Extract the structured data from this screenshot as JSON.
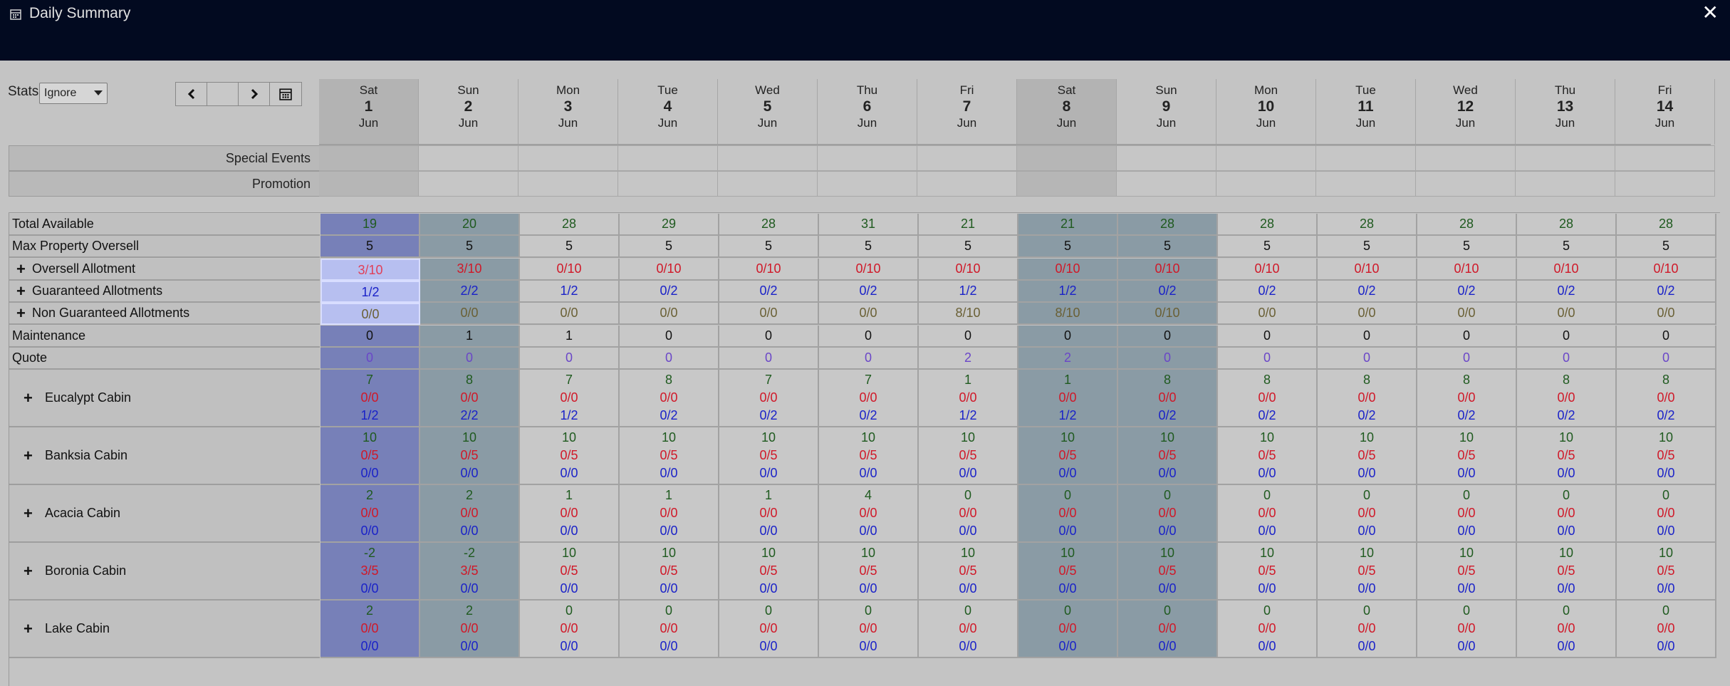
{
  "titlebar": {
    "title": "Daily Summary",
    "close_label": "✕",
    "icon": "calendar-icon"
  },
  "toolbar": {
    "stats_label": "Stats",
    "stats_value": "Ignore",
    "nav": {
      "prev_icon": "chevron-left-icon",
      "next_icon": "chevron-right-icon",
      "calendar_icon": "calendar-icon"
    }
  },
  "days": [
    {
      "dow": "Sat",
      "day": "1",
      "month": "Jun"
    },
    {
      "dow": "Sun",
      "day": "2",
      "month": "Jun"
    },
    {
      "dow": "Mon",
      "day": "3",
      "month": "Jun"
    },
    {
      "dow": "Tue",
      "day": "4",
      "month": "Jun"
    },
    {
      "dow": "Wed",
      "day": "5",
      "month": "Jun"
    },
    {
      "dow": "Thu",
      "day": "6",
      "month": "Jun"
    },
    {
      "dow": "Fri",
      "day": "7",
      "month": "Jun"
    },
    {
      "dow": "Sat",
      "day": "8",
      "month": "Jun"
    },
    {
      "dow": "Sun",
      "day": "9",
      "month": "Jun"
    },
    {
      "dow": "Mon",
      "day": "10",
      "month": "Jun"
    },
    {
      "dow": "Tue",
      "day": "11",
      "month": "Jun"
    },
    {
      "dow": "Wed",
      "day": "12",
      "month": "Jun"
    },
    {
      "dow": "Thu",
      "day": "13",
      "month": "Jun"
    },
    {
      "dow": "Fri",
      "day": "14",
      "month": "Jun"
    }
  ],
  "events": {
    "special_events_label": "Special Events",
    "promotion_label": "Promotion"
  },
  "summary_rows": [
    {
      "label": "Total Available",
      "expandable": false,
      "color": "green",
      "values": [
        "19",
        "20",
        "28",
        "29",
        "28",
        "31",
        "21",
        "21",
        "28",
        "28",
        "28",
        "28",
        "28",
        "28"
      ]
    },
    {
      "label": "Max Property Oversell",
      "expandable": false,
      "color": "black",
      "values": [
        "5",
        "5",
        "5",
        "5",
        "5",
        "5",
        "5",
        "5",
        "5",
        "5",
        "5",
        "5",
        "5",
        "5"
      ]
    },
    {
      "label": "Oversell Allotment",
      "expandable": true,
      "color": "red",
      "values": [
        "3/10",
        "3/10",
        "0/10",
        "0/10",
        "0/10",
        "0/10",
        "0/10",
        "0/10",
        "0/10",
        "0/10",
        "0/10",
        "0/10",
        "0/10",
        "0/10"
      ]
    },
    {
      "label": "Guaranteed Allotments",
      "expandable": true,
      "color": "blue",
      "values": [
        "1/2",
        "2/2",
        "1/2",
        "0/2",
        "0/2",
        "0/2",
        "1/2",
        "1/2",
        "0/2",
        "0/2",
        "0/2",
        "0/2",
        "0/2",
        "0/2"
      ]
    },
    {
      "label": "Non Guaranteed Allotments",
      "expandable": true,
      "color": "olive",
      "values": [
        "0/0",
        "0/0",
        "0/0",
        "0/0",
        "0/0",
        "0/0",
        "8/10",
        "8/10",
        "0/10",
        "0/0",
        "0/0",
        "0/0",
        "0/0",
        "0/0"
      ]
    },
    {
      "label": "Maintenance",
      "expandable": false,
      "color": "black",
      "values": [
        "0",
        "1",
        "1",
        "0",
        "0",
        "0",
        "0",
        "0",
        "0",
        "0",
        "0",
        "0",
        "0",
        "0"
      ]
    },
    {
      "label": "Quote",
      "expandable": false,
      "color": "purple",
      "values": [
        "0",
        "0",
        "0",
        "0",
        "0",
        "0",
        "2",
        "2",
        "0",
        "0",
        "0",
        "0",
        "0",
        "0"
      ]
    }
  ],
  "rooms": [
    {
      "label": "Eucalypt Cabin",
      "available": [
        "7",
        "8",
        "7",
        "8",
        "7",
        "7",
        "1",
        "1",
        "8",
        "8",
        "8",
        "8",
        "8",
        "8"
      ],
      "oversell": [
        "0/0",
        "0/0",
        "0/0",
        "0/0",
        "0/0",
        "0/0",
        "0/0",
        "0/0",
        "0/0",
        "0/0",
        "0/0",
        "0/0",
        "0/0",
        "0/0"
      ],
      "allotments": [
        "1/2",
        "2/2",
        "1/2",
        "0/2",
        "0/2",
        "0/2",
        "1/2",
        "1/2",
        "0/2",
        "0/2",
        "0/2",
        "0/2",
        "0/2",
        "0/2"
      ]
    },
    {
      "label": "Banksia Cabin",
      "available": [
        "10",
        "10",
        "10",
        "10",
        "10",
        "10",
        "10",
        "10",
        "10",
        "10",
        "10",
        "10",
        "10",
        "10"
      ],
      "oversell": [
        "0/5",
        "0/5",
        "0/5",
        "0/5",
        "0/5",
        "0/5",
        "0/5",
        "0/5",
        "0/5",
        "0/5",
        "0/5",
        "0/5",
        "0/5",
        "0/5"
      ],
      "allotments": [
        "0/0",
        "0/0",
        "0/0",
        "0/0",
        "0/0",
        "0/0",
        "0/0",
        "0/0",
        "0/0",
        "0/0",
        "0/0",
        "0/0",
        "0/0",
        "0/0"
      ]
    },
    {
      "label": "Acacia Cabin",
      "available": [
        "2",
        "2",
        "1",
        "1",
        "1",
        "4",
        "0",
        "0",
        "0",
        "0",
        "0",
        "0",
        "0",
        "0"
      ],
      "oversell": [
        "0/0",
        "0/0",
        "0/0",
        "0/0",
        "0/0",
        "0/0",
        "0/0",
        "0/0",
        "0/0",
        "0/0",
        "0/0",
        "0/0",
        "0/0",
        "0/0"
      ],
      "allotments": [
        "0/0",
        "0/0",
        "0/0",
        "0/0",
        "0/0",
        "0/0",
        "0/0",
        "0/0",
        "0/0",
        "0/0",
        "0/0",
        "0/0",
        "0/0",
        "0/0"
      ]
    },
    {
      "label": "Boronia Cabin",
      "available": [
        "-2",
        "-2",
        "10",
        "10",
        "10",
        "10",
        "10",
        "10",
        "10",
        "10",
        "10",
        "10",
        "10",
        "10"
      ],
      "oversell": [
        "3/5",
        "3/5",
        "0/5",
        "0/5",
        "0/5",
        "0/5",
        "0/5",
        "0/5",
        "0/5",
        "0/5",
        "0/5",
        "0/5",
        "0/5",
        "0/5"
      ],
      "allotments": [
        "0/0",
        "0/0",
        "0/0",
        "0/0",
        "0/0",
        "0/0",
        "0/0",
        "0/0",
        "0/0",
        "0/0",
        "0/0",
        "0/0",
        "0/0",
        "0/0"
      ]
    },
    {
      "label": "Lake Cabin",
      "available": [
        "2",
        "2",
        "0",
        "0",
        "0",
        "0",
        "0",
        "0",
        "0",
        "0",
        "0",
        "0",
        "0",
        "0"
      ],
      "oversell": [
        "0/0",
        "0/0",
        "0/0",
        "0/0",
        "0/0",
        "0/0",
        "0/0",
        "0/0",
        "0/0",
        "0/0",
        "0/0",
        "0/0",
        "0/0",
        "0/0"
      ],
      "allotments": [
        "0/0",
        "0/0",
        "0/0",
        "0/0",
        "0/0",
        "0/0",
        "0/0",
        "0/0",
        "0/0",
        "0/0",
        "0/0",
        "0/0",
        "0/0",
        "0/0"
      ]
    }
  ],
  "colors": {
    "titlebar_bg": "#020a20",
    "selected_column": "#7780b8",
    "weekend_column": "#8a9ba5",
    "highlight_cell": "#b7bff0",
    "available": "#1f5a1f",
    "oversell": "#d01828",
    "allotment": "#1a22c8",
    "quote": "#6a46c8"
  }
}
